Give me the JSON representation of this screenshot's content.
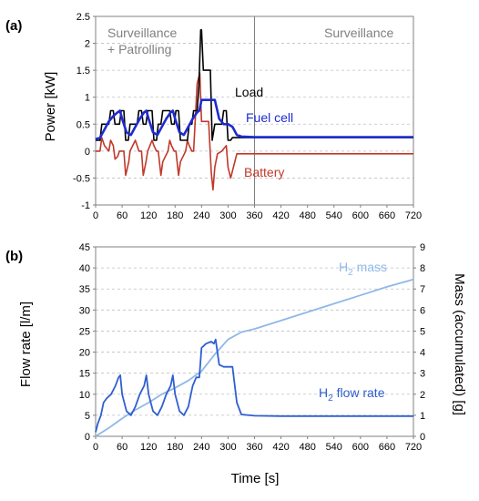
{
  "chart_data": [
    {
      "panel_label": "(a)",
      "type": "line",
      "ylabel": "Power [kW]",
      "xlim": [
        0,
        720
      ],
      "ylim": [
        -1,
        2.5
      ],
      "x_ticks": [
        0,
        60,
        120,
        180,
        240,
        300,
        360,
        420,
        480,
        540,
        600,
        660,
        720
      ],
      "y_ticks": [
        -1,
        -0.5,
        0,
        0.5,
        1,
        1.5,
        2,
        2.5
      ],
      "grid": true,
      "regions": [
        {
          "label_line1": "Surveillance",
          "label_line2": "+ Patrolling",
          "x_range": [
            0,
            360
          ]
        },
        {
          "label_line1": "Surveillance",
          "label_line2": "",
          "x_range": [
            360,
            720
          ]
        }
      ],
      "divider_x": 360,
      "series": [
        {
          "name": "Load",
          "color": "#000000",
          "x": [
            0,
            10,
            14,
            30,
            34,
            40,
            44,
            54,
            58,
            64,
            68,
            74,
            78,
            94,
            98,
            104,
            108,
            114,
            118,
            128,
            132,
            138,
            142,
            148,
            152,
            168,
            172,
            178,
            182,
            188,
            192,
            208,
            212,
            218,
            222,
            230,
            234,
            238,
            240,
            244,
            248,
            252,
            256,
            260,
            264,
            270,
            276,
            286,
            290,
            296,
            300,
            306,
            310,
            720
          ],
          "y": [
            0.2,
            0.2,
            0.5,
            0.5,
            0.75,
            0.75,
            0.5,
            0.5,
            0.75,
            0.75,
            0.2,
            0.2,
            0.5,
            0.5,
            0.75,
            0.75,
            0.5,
            0.5,
            0.75,
            0.75,
            0.2,
            0.2,
            0.5,
            0.5,
            0.75,
            0.75,
            0.5,
            0.5,
            0.75,
            0.75,
            0.2,
            0.2,
            0.5,
            0.5,
            0.75,
            0.75,
            1.2,
            2.25,
            2.25,
            1.5,
            1.5,
            1.5,
            1.5,
            1.5,
            0.2,
            0.5,
            0.5,
            0.5,
            0.75,
            0.75,
            0.2,
            0.2,
            0.25,
            0.25
          ]
        },
        {
          "name": "Fuel cell",
          "color": "#1f2bd1",
          "x": [
            0,
            10,
            20,
            30,
            40,
            50,
            55,
            60,
            70,
            80,
            90,
            100,
            110,
            115,
            120,
            130,
            140,
            150,
            160,
            170,
            175,
            180,
            190,
            200,
            210,
            220,
            230,
            235,
            240,
            250,
            260,
            270,
            280,
            290,
            300,
            310,
            320,
            330,
            360,
            720
          ],
          "y": [
            0.22,
            0.25,
            0.4,
            0.55,
            0.65,
            0.72,
            0.75,
            0.6,
            0.35,
            0.3,
            0.45,
            0.6,
            0.72,
            0.75,
            0.6,
            0.35,
            0.3,
            0.45,
            0.6,
            0.72,
            0.75,
            0.6,
            0.35,
            0.3,
            0.45,
            0.6,
            0.72,
            0.75,
            0.95,
            0.95,
            0.95,
            0.95,
            0.6,
            0.5,
            0.5,
            0.45,
            0.3,
            0.27,
            0.26,
            0.26
          ]
        },
        {
          "name": "Battery",
          "color": "#c0392b",
          "x": [
            0,
            10,
            14,
            20,
            30,
            34,
            40,
            44,
            50,
            54,
            58,
            64,
            68,
            75,
            78,
            90,
            94,
            98,
            104,
            108,
            114,
            118,
            128,
            132,
            138,
            142,
            148,
            152,
            164,
            168,
            172,
            178,
            182,
            188,
            192,
            204,
            208,
            212,
            218,
            222,
            230,
            236,
            240,
            244,
            250,
            256,
            262,
            266,
            270,
            276,
            286,
            296,
            300,
            306,
            320,
            720
          ],
          "y": [
            0.0,
            0.0,
            0.25,
            0.1,
            0.0,
            0.2,
            0.1,
            -0.15,
            -0.1,
            0.0,
            0.0,
            0.0,
            -0.45,
            -0.2,
            0.0,
            0.2,
            0.1,
            0.0,
            0.0,
            -0.45,
            -0.2,
            0.0,
            0.2,
            0.1,
            0.0,
            0.0,
            -0.45,
            -0.2,
            0.0,
            0.2,
            0.1,
            0.0,
            0.0,
            -0.45,
            -0.2,
            0.0,
            0.2,
            0.1,
            0.0,
            0.0,
            1.25,
            1.45,
            0.55,
            0.55,
            0.55,
            0.55,
            -0.4,
            -0.72,
            -0.3,
            -0.05,
            0.0,
            0.1,
            -0.3,
            -0.5,
            -0.05,
            -0.05
          ]
        }
      ]
    },
    {
      "panel_label": "(b)",
      "type": "line",
      "xlabel": "Time [s]",
      "ylabel": "Flow rate [l/m]",
      "ylabel_right": "Mass (accumulated) [g]",
      "xlim": [
        0,
        720
      ],
      "ylim": [
        0,
        45
      ],
      "ylim_right": [
        0,
        9
      ],
      "x_ticks": [
        0,
        60,
        120,
        180,
        240,
        300,
        360,
        420,
        480,
        540,
        600,
        660,
        720
      ],
      "y_ticks": [
        0,
        5,
        10,
        15,
        20,
        25,
        30,
        35,
        40,
        45
      ],
      "y_ticks_right": [
        0,
        1,
        2,
        3,
        4,
        5,
        6,
        7,
        8,
        9
      ],
      "grid": true,
      "series": [
        {
          "name_main": "H",
          "name_sub": "2",
          "name_rest": " flow rate",
          "color": "#2f5fd0",
          "axis": "left",
          "x": [
            0,
            5,
            12,
            18,
            25,
            35,
            45,
            52,
            56,
            60,
            70,
            80,
            90,
            100,
            110,
            115,
            120,
            130,
            140,
            150,
            160,
            170,
            175,
            180,
            190,
            200,
            210,
            220,
            228,
            235,
            240,
            250,
            262,
            268,
            272,
            280,
            290,
            300,
            310,
            320,
            330,
            360,
            420,
            720
          ],
          "y": [
            1,
            3,
            5,
            8,
            9,
            10,
            12,
            14,
            14.5,
            10,
            6,
            5,
            7,
            10,
            12,
            14.5,
            10,
            6,
            5,
            7,
            10,
            12,
            14.5,
            10,
            6,
            5,
            7,
            12,
            14,
            14,
            21,
            22,
            22.5,
            22,
            23,
            17,
            16.5,
            16.5,
            16.5,
            8,
            5.2,
            4.9,
            4.8,
            4.8
          ]
        },
        {
          "name_main": "H",
          "name_sub": "2",
          "name_rest": " mass",
          "color": "#8fb8e8",
          "axis": "right",
          "x": [
            0,
            30,
            60,
            90,
            120,
            150,
            180,
            210,
            240,
            270,
            300,
            330,
            360,
            420,
            480,
            540,
            600,
            660,
            720
          ],
          "y": [
            0,
            0.4,
            0.85,
            1.25,
            1.6,
            2.0,
            2.3,
            2.65,
            3.1,
            3.9,
            4.6,
            4.95,
            5.1,
            5.5,
            5.9,
            6.3,
            6.7,
            7.1,
            7.45
          ]
        }
      ]
    }
  ]
}
